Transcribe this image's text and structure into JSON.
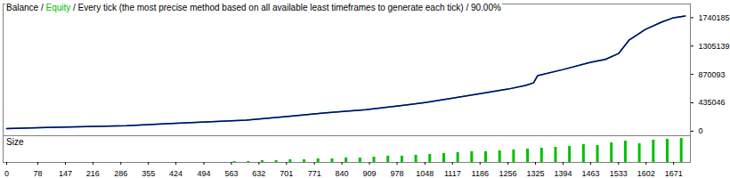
{
  "chart_data": [
    {
      "type": "line",
      "title": "Balance / Equity / Every tick (the most precise method based on all available least timeframes to generate each tick) / 90.00%",
      "x": [
        0,
        100,
        200,
        300,
        400,
        500,
        600,
        700,
        800,
        900,
        1000,
        1048,
        1100,
        1186,
        1256,
        1300,
        1320,
        1330,
        1394,
        1463,
        1500,
        1533,
        1560,
        1600,
        1640,
        1671,
        1700
      ],
      "series": [
        {
          "name": "Equity",
          "color": "#00c000",
          "values": [
            40000,
            55000,
            70000,
            85000,
            115000,
            140000,
            170000,
            225000,
            280000,
            330000,
            400000,
            440000,
            490000,
            575000,
            645000,
            700000,
            740000,
            850000,
            945000,
            1055000,
            1100000,
            1190000,
            1400000,
            1560000,
            1670000,
            1740000,
            1765000
          ]
        },
        {
          "name": "Balance",
          "color": "#00008b",
          "values": [
            40000,
            55000,
            70000,
            85000,
            115000,
            140000,
            170000,
            225000,
            280000,
            330000,
            400000,
            440000,
            490000,
            575000,
            645000,
            700000,
            740000,
            850000,
            945000,
            1055000,
            1100000,
            1190000,
            1400000,
            1560000,
            1670000,
            1740000,
            1765000
          ]
        }
      ],
      "xlim": [
        -9,
        1713
      ],
      "ylim": [
        -70000,
        1950000
      ],
      "yticks": [
        0,
        435046,
        870093,
        1305139,
        1740185
      ],
      "tick_labels": "y",
      "grid": false
    },
    {
      "type": "bar",
      "title": "Size",
      "x": [
        570,
        605,
        640,
        675,
        710,
        745,
        780,
        815,
        850,
        885,
        920,
        955,
        990,
        1025,
        1060,
        1095,
        1130,
        1165,
        1200,
        1235,
        1270,
        1305,
        1340,
        1375,
        1410,
        1445,
        1480,
        1515,
        1550,
        1585,
        1620,
        1655,
        1690
      ],
      "values": [
        1,
        1,
        2,
        2,
        3,
        3,
        4,
        4,
        5,
        5,
        6,
        7,
        7,
        8,
        9,
        10,
        11,
        12,
        12,
        13,
        14,
        15,
        16,
        17,
        18,
        20,
        19,
        22,
        24,
        21,
        25,
        26,
        27
      ],
      "color": "#00c000",
      "xlim": [
        -9,
        1713
      ],
      "xticks": [
        0,
        78,
        147,
        216,
        286,
        355,
        424,
        494,
        563,
        632,
        701,
        771,
        840,
        909,
        978,
        1048,
        1117,
        1186,
        1256,
        1325,
        1394,
        1463,
        1533,
        1602,
        1671
      ],
      "ylim": [
        0,
        30
      ],
      "tick_labels": "x",
      "grid": false
    }
  ]
}
